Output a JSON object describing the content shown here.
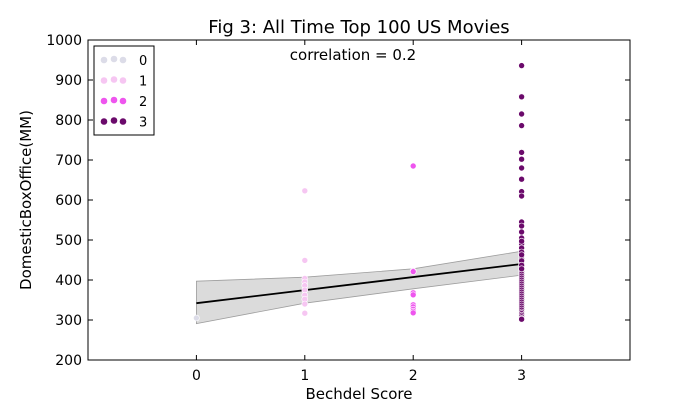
{
  "chart_data": {
    "type": "scatter",
    "title": "Fig 3: All Time Top 100 US Movies",
    "xlabel": "Bechdel  Score",
    "ylabel": "DomesticBoxOffice(MM)",
    "annotation": "correlation = 0.2",
    "xlim": [
      -1,
      4
    ],
    "ylim": [
      200,
      1000
    ],
    "xticks": [
      0,
      1,
      2,
      3
    ],
    "yticks": [
      200,
      300,
      400,
      500,
      600,
      700,
      800,
      900,
      1000
    ],
    "grid": false,
    "legend_position": "top-left",
    "series": [
      {
        "name": "0",
        "color": "#dcdce8",
        "x": [
          0
        ],
        "y": [
          305
        ]
      },
      {
        "name": "1",
        "color": "#f6c6f2",
        "x": [
          1,
          1,
          1,
          1,
          1,
          1,
          1,
          1,
          1,
          1
        ],
        "y": [
          623,
          449,
          404,
          395,
          386,
          375,
          362,
          352,
          340,
          317
        ]
      },
      {
        "name": "2",
        "color": "#ee55ee",
        "x": [
          2,
          2,
          2,
          2,
          2,
          2,
          2,
          2,
          2,
          2
        ],
        "y": [
          685,
          423,
          368,
          363,
          338,
          333,
          327,
          322,
          318,
          421
        ]
      },
      {
        "name": "3",
        "color": "#6b0a6b",
        "x": [
          3,
          3,
          3,
          3,
          3,
          3,
          3,
          3,
          3,
          3,
          3,
          3,
          3,
          3,
          3,
          3,
          3,
          3,
          3,
          3,
          3,
          3,
          3,
          3,
          3,
          3,
          3,
          3,
          3,
          3,
          3,
          3,
          3,
          3,
          3,
          3,
          3,
          3,
          3,
          3,
          3,
          3,
          3,
          3,
          3,
          3,
          3,
          3,
          3,
          3,
          3,
          3,
          3,
          3,
          3
        ],
        "y": [
          936,
          858,
          815,
          786,
          719,
          702,
          680,
          652,
          621,
          610,
          545,
          535,
          520,
          505,
          490,
          480,
          470,
          460,
          452,
          445,
          440,
          435,
          430,
          425,
          420,
          415,
          410,
          405,
          400,
          395,
          390,
          385,
          380,
          375,
          370,
          365,
          360,
          355,
          350,
          345,
          340,
          335,
          330,
          325,
          320,
          316,
          312,
          308,
          304,
          302,
          497,
          463,
          448,
          437,
          428
        ]
      }
    ],
    "regression": {
      "x": [
        0,
        3
      ],
      "y": [
        342,
        440
      ]
    },
    "confidence_band": {
      "x": [
        0,
        1,
        2,
        3
      ],
      "upper": [
        397,
        407,
        428,
        472
      ],
      "lower": [
        291,
        342,
        378,
        412
      ]
    }
  }
}
